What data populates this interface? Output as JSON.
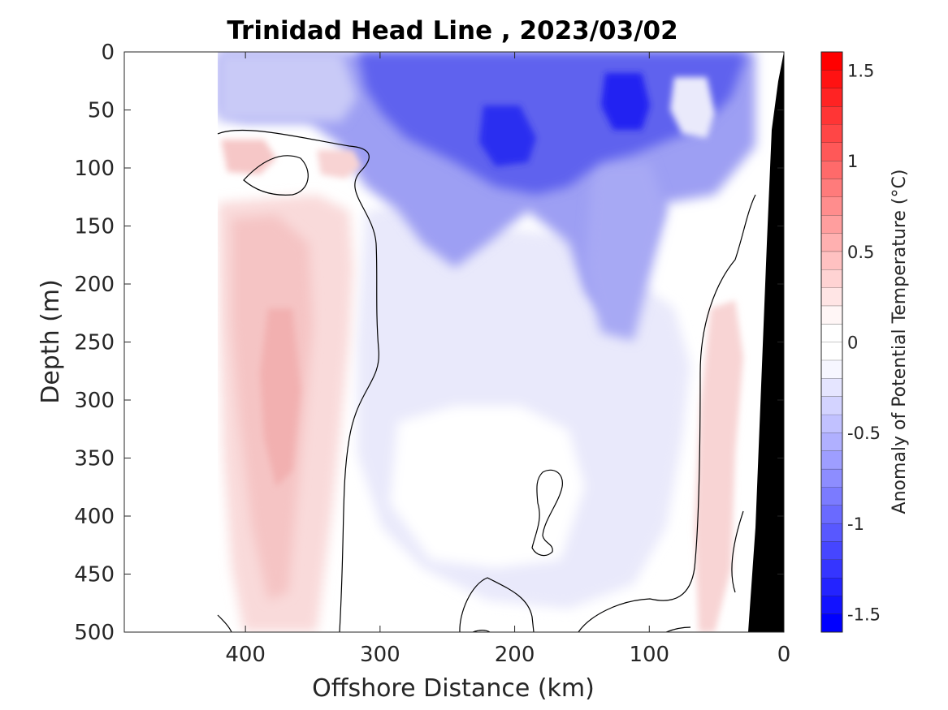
{
  "chart_data": {
    "type": "heatmap",
    "title": "Trinidad Head Line , 2023/03/02",
    "xlabel": "Offshore Distance (km)",
    "ylabel": "Depth (m)",
    "xlim": [
      490,
      0
    ],
    "ylim": [
      0,
      500
    ],
    "x_reversed": true,
    "y_reversed": true,
    "x_ticks": [
      400,
      300,
      200,
      100,
      0
    ],
    "y_ticks": [
      0,
      50,
      100,
      150,
      200,
      250,
      300,
      350,
      400,
      450,
      500
    ],
    "colorbar": {
      "label": "Anomaly of Potential Temperature (°C)",
      "range": [
        -1.6,
        1.6
      ],
      "step": 0.1,
      "ticks": [
        -1.5,
        -1,
        -0.5,
        0,
        0.5,
        1,
        1.5
      ],
      "tick_labels": [
        "-1.5",
        "-1",
        "-0.5",
        "0",
        "0.5",
        "1",
        "1.5"
      ],
      "min_color": "#0000ff",
      "max_color": "#ff0000",
      "mid_color": "#ffffff"
    },
    "grid": false,
    "data_extent_km": [
      420,
      20
    ],
    "bathymetry_color": "#000000",
    "regions": [
      {
        "feature": "surface cold anomaly",
        "x_km": [
          20,
          420
        ],
        "depth_m": [
          0,
          120
        ],
        "min_value": -1.4
      },
      {
        "feature": "cold core",
        "x_km": [
          190,
          225
        ],
        "depth_m": [
          60,
          100
        ],
        "value": -1.3
      },
      {
        "feature": "cold core",
        "x_km": [
          100,
          140
        ],
        "depth_m": [
          30,
          70
        ],
        "value": -1.4
      },
      {
        "feature": "subsurface cold tongue",
        "x_km": [
          80,
          160
        ],
        "depth_m": [
          120,
          330
        ],
        "value": -0.6
      },
      {
        "feature": "warm anomaly band",
        "x_km": [
          310,
          410
        ],
        "depth_m": [
          80,
          500
        ],
        "value": 0.5
      },
      {
        "feature": "warm core",
        "x_km": [
          350,
          380
        ],
        "depth_m": [
          250,
          380
        ],
        "value": 0.5
      },
      {
        "feature": "nearshore warm strip",
        "x_km": [
          30,
          65
        ],
        "depth_m": [
          230,
          500
        ],
        "value": 0.3
      }
    ]
  }
}
